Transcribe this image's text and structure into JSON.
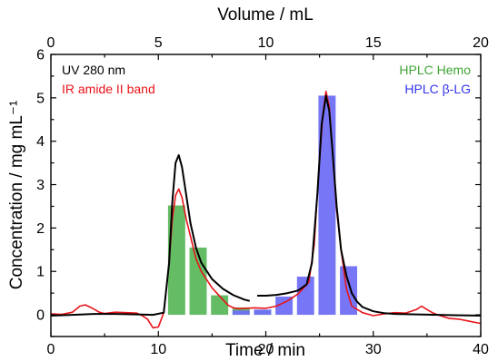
{
  "chart_data": {
    "type": "line",
    "title": "",
    "xlabel": "Time / min",
    "ylabel": "Concentration / mg mL⁻¹",
    "x2label": "Volume / mL",
    "xlim": [
      0,
      40
    ],
    "ylim": [
      -0.5,
      6
    ],
    "x2lim": [
      0,
      20
    ],
    "x_ticks": [
      "0",
      "10",
      "20",
      "30",
      "40"
    ],
    "y_ticks": [
      "0",
      "1",
      "2",
      "3",
      "4",
      "5",
      "6"
    ],
    "x2_ticks": [
      "0",
      "5",
      "10",
      "15",
      "20"
    ],
    "grid": false,
    "legend_left": [
      {
        "label": "UV 280 nm",
        "color": "#000000"
      },
      {
        "label": "IR amide II band",
        "color": "#e8141a"
      }
    ],
    "legend_right": [
      {
        "label": "HPLC Hemo",
        "color": "#3fa535"
      },
      {
        "label": "HPLC β-LG",
        "color": "#3333ee"
      }
    ],
    "bars_hemo": {
      "name": "HPLC Hemo",
      "color": "#5cb85c",
      "x": [
        11.7,
        13.7,
        15.7,
        17.7,
        19.7
      ],
      "values": [
        2.52,
        1.55,
        0.45,
        0.17,
        0.1
      ]
    },
    "bars_blg": {
      "name": "HPLC β-LG",
      "color": "#6f6ff5",
      "x": [
        17.7,
        19.7,
        21.7,
        23.7,
        25.7,
        27.7
      ],
      "values": [
        0.1,
        0.12,
        0.42,
        0.88,
        5.05,
        1.12
      ]
    },
    "series": [
      {
        "name": "UV 280 nm",
        "color": "#000000",
        "segments": [
          {
            "x": [
              0,
              2,
              4,
              6,
              8,
              9.5,
              10.5,
              11.0,
              11.3,
              11.6,
              11.9,
              12.2,
              12.6,
              13,
              13.5,
              14,
              15,
              16,
              17,
              18,
              18.5
            ],
            "y": [
              -0.02,
              0.0,
              0.02,
              0.02,
              0.01,
              0.0,
              0.05,
              1.2,
              2.6,
              3.5,
              3.68,
              3.4,
              2.75,
              2.1,
              1.55,
              1.2,
              0.82,
              0.6,
              0.45,
              0.35,
              0.32
            ]
          },
          {
            "x": [
              19.2,
              20,
              21,
              22,
              23,
              23.8,
              24.3,
              24.8,
              25.2,
              25.6,
              25.9,
              26.2,
              26.6,
              27,
              27.5,
              28,
              28.5,
              29,
              30,
              31,
              32,
              34,
              36,
              38,
              40
            ],
            "y": [
              0.44,
              0.44,
              0.46,
              0.5,
              0.56,
              0.7,
              1.2,
              2.8,
              4.4,
              5.05,
              4.7,
              3.8,
              2.5,
              1.5,
              0.9,
              0.5,
              0.3,
              0.18,
              0.08,
              0.04,
              0.02,
              0.01,
              0.0,
              -0.01,
              -0.02
            ]
          }
        ]
      },
      {
        "name": "IR amide II band",
        "color": "#e8141a",
        "segments": [
          {
            "x": [
              0,
              1,
              2,
              2.7,
              3.2,
              3.8,
              4.5,
              5,
              6,
              7,
              8,
              8.5,
              9,
              9.5,
              10,
              10.5,
              11,
              11.3,
              11.6,
              11.9,
              12.2,
              12.6,
              13,
              13.5,
              14,
              15,
              16,
              16.5,
              17,
              17.5,
              18,
              19,
              20,
              21,
              22,
              23,
              24,
              24.5,
              24.9,
              25.3,
              25.6,
              25.9,
              26.2,
              26.6,
              27,
              27.5,
              28,
              29,
              30,
              31,
              32,
              33,
              34,
              34.5,
              35,
              35.5,
              36,
              37,
              38,
              39,
              40
            ],
            "y": [
              0.02,
              0.01,
              0.06,
              0.2,
              0.23,
              0.16,
              0.06,
              0.03,
              0.06,
              0.05,
              0.04,
              -0.02,
              -0.1,
              -0.3,
              -0.28,
              0.05,
              1.2,
              2.2,
              2.75,
              2.9,
              2.7,
              2.2,
              1.8,
              1.3,
              1.0,
              0.62,
              0.35,
              0.22,
              0.16,
              0.14,
              0.15,
              0.16,
              0.15,
              0.2,
              0.32,
              0.48,
              0.75,
              1.6,
              3.2,
              4.6,
              5.15,
              4.8,
              3.8,
              2.4,
              1.5,
              0.6,
              0.2,
              0.05,
              -0.02,
              0.02,
              0.05,
              0.04,
              0.12,
              0.2,
              0.12,
              0.05,
              0.0,
              -0.08,
              -0.1,
              -0.15,
              -0.2
            ]
          }
        ]
      }
    ]
  }
}
